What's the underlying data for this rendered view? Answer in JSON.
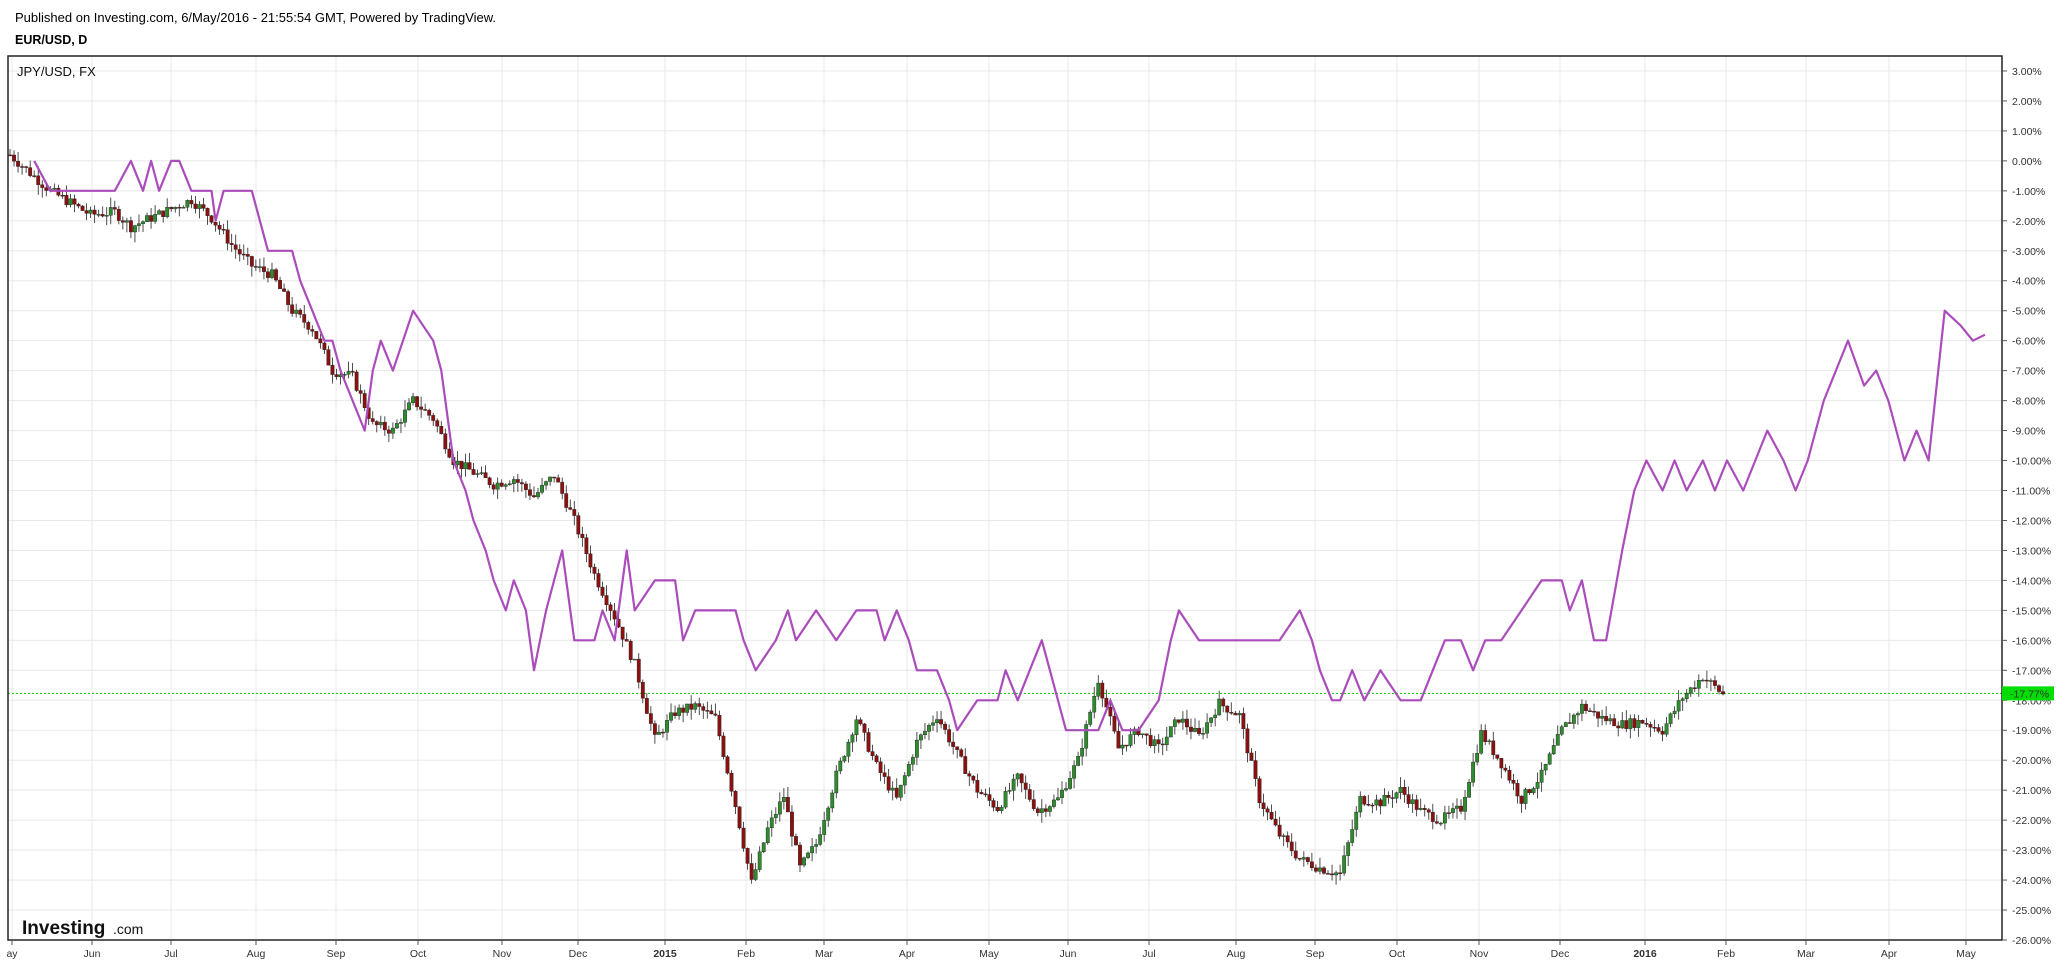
{
  "header": {
    "published": "Published on Investing.com, 6/May/2016 - 21:55:54 GMT, Powered by TradingView.",
    "symbol": "EUR/USD, D"
  },
  "overlay_label": "JPY/USD, FX",
  "logo": {
    "main": "Investing",
    "sub": ".com"
  },
  "colors": {
    "frame": "#222222",
    "grid": "#e8e8e8",
    "up_candle": "#2e8b2e",
    "down_candle": "#8b1010",
    "overlay_line": "#aa4dbb",
    "last_price_line": "#00cc00",
    "last_price_badge": "#00dd00"
  },
  "chart_data": {
    "type": "line",
    "ylim": [
      -26,
      3.5
    ],
    "y_unit": "%",
    "y_ticks": [
      "3.00%",
      "2.00%",
      "1.00%",
      "0.00%",
      "-1.00%",
      "-2.00%",
      "-3.00%",
      "-4.00%",
      "-5.00%",
      "-6.00%",
      "-7.00%",
      "-8.00%",
      "-9.00%",
      "-10.00%",
      "-11.00%",
      "-12.00%",
      "-13.00%",
      "-14.00%",
      "-15.00%",
      "-16.00%",
      "-17.00%",
      "-18.00%",
      "-19.00%",
      "-20.00%",
      "-21.00%",
      "-22.00%",
      "-23.00%",
      "-24.00%",
      "-25.00%",
      "-26.00%"
    ],
    "x_ticks": [
      {
        "label": "ay",
        "bold": false
      },
      {
        "label": "Jun",
        "bold": false
      },
      {
        "label": "Jul",
        "bold": false
      },
      {
        "label": "Aug",
        "bold": false
      },
      {
        "label": "Sep",
        "bold": false
      },
      {
        "label": "Oct",
        "bold": false
      },
      {
        "label": "Nov",
        "bold": false
      },
      {
        "label": "Dec",
        "bold": false
      },
      {
        "label": "2015",
        "bold": true
      },
      {
        "label": "Feb",
        "bold": false
      },
      {
        "label": "Mar",
        "bold": false
      },
      {
        "label": "Apr",
        "bold": false
      },
      {
        "label": "May",
        "bold": false
      },
      {
        "label": "Jun",
        "bold": false
      },
      {
        "label": "Jul",
        "bold": false
      },
      {
        "label": "Aug",
        "bold": false
      },
      {
        "label": "Sep",
        "bold": false
      },
      {
        "label": "Oct",
        "bold": false
      },
      {
        "label": "Nov",
        "bold": false
      },
      {
        "label": "Dec",
        "bold": false
      },
      {
        "label": "2016",
        "bold": true
      },
      {
        "label": "Feb",
        "bold": false
      },
      {
        "label": "Mar",
        "bold": false
      },
      {
        "label": "Apr",
        "bold": false
      },
      {
        "label": "May",
        "bold": false
      }
    ],
    "last_value": -17.77,
    "last_value_label": "-17.77%",
    "series": [
      {
        "name": "EUR/USD, D",
        "kind": "candlestick",
        "points": [
          [
            0,
            0.2
          ],
          [
            1,
            -1.0
          ],
          [
            2,
            -1.8
          ],
          [
            2.6,
            -1.7
          ],
          [
            3,
            -2.2
          ],
          [
            4,
            -1.6
          ],
          [
            4.5,
            -1.3
          ],
          [
            5,
            -1.9
          ],
          [
            5.5,
            -2.8
          ],
          [
            6,
            -3.5
          ],
          [
            6.5,
            -3.8
          ],
          [
            7,
            -5.0
          ],
          [
            7.5,
            -5.6
          ],
          [
            8,
            -7.0
          ],
          [
            8.5,
            -7.2
          ],
          [
            9,
            -8.8
          ],
          [
            9.5,
            -9.0
          ],
          [
            10,
            -8.0
          ],
          [
            10.5,
            -8.6
          ],
          [
            11,
            -10.0
          ],
          [
            11.5,
            -10.4
          ],
          [
            12,
            -10.8
          ],
          [
            12.5,
            -10.6
          ],
          [
            13,
            -11.2
          ],
          [
            13.5,
            -10.5
          ],
          [
            14,
            -12.0
          ],
          [
            14.5,
            -13.8
          ],
          [
            15,
            -15.2
          ],
          [
            15.5,
            -16.8
          ],
          [
            16,
            -19.3
          ],
          [
            16.5,
            -18.4
          ],
          [
            17,
            -18.2
          ],
          [
            17.5,
            -18.6
          ],
          [
            18,
            -21.5
          ],
          [
            18.4,
            -24.1
          ],
          [
            18.8,
            -22.3
          ],
          [
            19.2,
            -21.2
          ],
          [
            19.6,
            -23.6
          ],
          [
            20,
            -22.8
          ],
          [
            20.5,
            -20.5
          ],
          [
            21,
            -18.6
          ],
          [
            21.5,
            -20.2
          ],
          [
            22,
            -21.3
          ],
          [
            22.5,
            -19.4
          ],
          [
            23,
            -18.5
          ],
          [
            23.5,
            -19.8
          ],
          [
            24,
            -21.0
          ],
          [
            24.5,
            -21.6
          ],
          [
            25,
            -20.6
          ],
          [
            25.5,
            -21.7
          ],
          [
            26,
            -21.3
          ],
          [
            26.5,
            -20.0
          ],
          [
            27,
            -17.3
          ],
          [
            27.5,
            -19.6
          ],
          [
            28,
            -19.0
          ],
          [
            28.5,
            -19.6
          ],
          [
            29,
            -18.6
          ],
          [
            29.5,
            -19.2
          ],
          [
            30,
            -18.1
          ],
          [
            30.5,
            -18.5
          ],
          [
            31,
            -21.3
          ],
          [
            31.5,
            -22.5
          ],
          [
            32,
            -23.3
          ],
          [
            32.5,
            -23.6
          ],
          [
            33,
            -23.8
          ],
          [
            33.5,
            -21.3
          ],
          [
            34,
            -21.4
          ],
          [
            34.5,
            -21.0
          ],
          [
            35,
            -21.7
          ],
          [
            35.5,
            -22.0
          ],
          [
            36,
            -21.6
          ],
          [
            36.5,
            -19.1
          ],
          [
            37,
            -20.1
          ],
          [
            37.5,
            -21.3
          ],
          [
            38,
            -20.5
          ],
          [
            38.5,
            -19.0
          ],
          [
            39,
            -18.2
          ],
          [
            39.5,
            -18.6
          ],
          [
            40,
            -18.8
          ],
          [
            40.5,
            -18.7
          ],
          [
            41,
            -19.0
          ],
          [
            41.5,
            -17.9
          ],
          [
            42,
            -17.2
          ],
          [
            42.5,
            -17.8
          ]
        ]
      },
      {
        "name": "JPY/USD, FX",
        "kind": "line",
        "points": [
          [
            0.6,
            0.0
          ],
          [
            1,
            -1.0
          ],
          [
            2,
            -1.0
          ],
          [
            2.6,
            -1.0
          ],
          [
            3,
            0.0
          ],
          [
            3.3,
            -1.0
          ],
          [
            3.5,
            0.0
          ],
          [
            3.7,
            -1.0
          ],
          [
            4,
            0.0
          ],
          [
            4.2,
            0.0
          ],
          [
            4.5,
            -1.0
          ],
          [
            5,
            -1.0
          ],
          [
            5.1,
            -2.0
          ],
          [
            5.3,
            -1.0
          ],
          [
            6,
            -1.0
          ],
          [
            6.2,
            -2.0
          ],
          [
            6.4,
            -3.0
          ],
          [
            7,
            -3.0
          ],
          [
            7.2,
            -4.0
          ],
          [
            7.5,
            -5.0
          ],
          [
            7.8,
            -6.0
          ],
          [
            8,
            -6.0
          ],
          [
            8.2,
            -7.0
          ],
          [
            8.5,
            -8.0
          ],
          [
            8.8,
            -9.0
          ],
          [
            9,
            -7.0
          ],
          [
            9.2,
            -6.0
          ],
          [
            9.5,
            -7.0
          ],
          [
            10,
            -5.0
          ],
          [
            10.5,
            -6.0
          ],
          [
            10.7,
            -7.0
          ],
          [
            11,
            -10.0
          ],
          [
            11.3,
            -11.0
          ],
          [
            11.5,
            -12.0
          ],
          [
            11.8,
            -13.0
          ],
          [
            12,
            -14.0
          ],
          [
            12.3,
            -15.0
          ],
          [
            12.5,
            -14.0
          ],
          [
            12.8,
            -15.0
          ],
          [
            13,
            -17.0
          ],
          [
            13.3,
            -15.0
          ],
          [
            13.5,
            -14.0
          ],
          [
            13.7,
            -13.0
          ],
          [
            14,
            -16.0
          ],
          [
            14.5,
            -16.0
          ],
          [
            14.7,
            -15.0
          ],
          [
            15,
            -16.0
          ],
          [
            15.3,
            -13.0
          ],
          [
            15.5,
            -15.0
          ],
          [
            16,
            -14.0
          ],
          [
            16.5,
            -14.0
          ],
          [
            16.7,
            -16.0
          ],
          [
            17,
            -15.0
          ],
          [
            18,
            -15.0
          ],
          [
            18.2,
            -16.0
          ],
          [
            18.5,
            -17.0
          ],
          [
            19,
            -16.0
          ],
          [
            19.3,
            -15.0
          ],
          [
            19.5,
            -16.0
          ],
          [
            20,
            -15.0
          ],
          [
            20.5,
            -16.0
          ],
          [
            21,
            -15.0
          ],
          [
            21.5,
            -15.0
          ],
          [
            21.7,
            -16.0
          ],
          [
            22,
            -15.0
          ],
          [
            22.3,
            -16.0
          ],
          [
            22.5,
            -17.0
          ],
          [
            23,
            -17.0
          ],
          [
            23.3,
            -18.0
          ],
          [
            23.5,
            -19.0
          ],
          [
            24,
            -18.0
          ],
          [
            24.5,
            -18.0
          ],
          [
            24.7,
            -17.0
          ],
          [
            25,
            -18.0
          ],
          [
            25.3,
            -17.0
          ],
          [
            25.6,
            -16.0
          ],
          [
            26,
            -18.0
          ],
          [
            26.2,
            -19.0
          ],
          [
            27,
            -19.0
          ],
          [
            27.3,
            -18.0
          ],
          [
            27.6,
            -19.0
          ],
          [
            28,
            -19.0
          ],
          [
            28.5,
            -18.0
          ],
          [
            28.8,
            -16.0
          ],
          [
            29,
            -15.0
          ],
          [
            29.5,
            -16.0
          ],
          [
            30,
            -16.0
          ],
          [
            31,
            -16.0
          ],
          [
            31.5,
            -16.0
          ],
          [
            32,
            -15.0
          ],
          [
            32.3,
            -16.0
          ],
          [
            32.5,
            -17.0
          ],
          [
            32.8,
            -18.0
          ],
          [
            33,
            -18.0
          ],
          [
            33.3,
            -17.0
          ],
          [
            33.6,
            -18.0
          ],
          [
            34,
            -17.0
          ],
          [
            34.5,
            -18.0
          ],
          [
            35,
            -18.0
          ],
          [
            35.3,
            -17.0
          ],
          [
            35.6,
            -16.0
          ],
          [
            36,
            -16.0
          ],
          [
            36.3,
            -17.0
          ],
          [
            36.6,
            -16.0
          ],
          [
            37,
            -16.0
          ],
          [
            37.5,
            -15.0
          ],
          [
            38,
            -14.0
          ],
          [
            38.5,
            -14.0
          ],
          [
            38.7,
            -15.0
          ],
          [
            39,
            -14.0
          ],
          [
            39.3,
            -16.0
          ],
          [
            39.6,
            -16.0
          ],
          [
            40,
            -13.0
          ],
          [
            40.3,
            -11.0
          ],
          [
            40.6,
            -10.0
          ],
          [
            41,
            -11.0
          ],
          [
            41.3,
            -10.0
          ],
          [
            41.6,
            -11.0
          ],
          [
            42,
            -10.0
          ],
          [
            42.3,
            -11.0
          ],
          [
            42.6,
            -10.0
          ],
          [
            43,
            -11.0
          ],
          [
            43.3,
            -10.0
          ],
          [
            43.6,
            -9.0
          ],
          [
            44,
            -10.0
          ],
          [
            44.3,
            -11.0
          ],
          [
            44.6,
            -10.0
          ],
          [
            45,
            -8.0
          ],
          [
            45.3,
            -7.0
          ],
          [
            45.6,
            -6.0
          ],
          [
            46,
            -7.5
          ],
          [
            46.3,
            -7.0
          ],
          [
            46.6,
            -8.0
          ],
          [
            47,
            -10.0
          ],
          [
            47.3,
            -9.0
          ],
          [
            47.6,
            -10.0
          ],
          [
            48,
            -5.0
          ],
          [
            48.4,
            -5.5
          ],
          [
            48.7,
            -6.0
          ],
          [
            49,
            -5.8
          ]
        ]
      }
    ]
  }
}
